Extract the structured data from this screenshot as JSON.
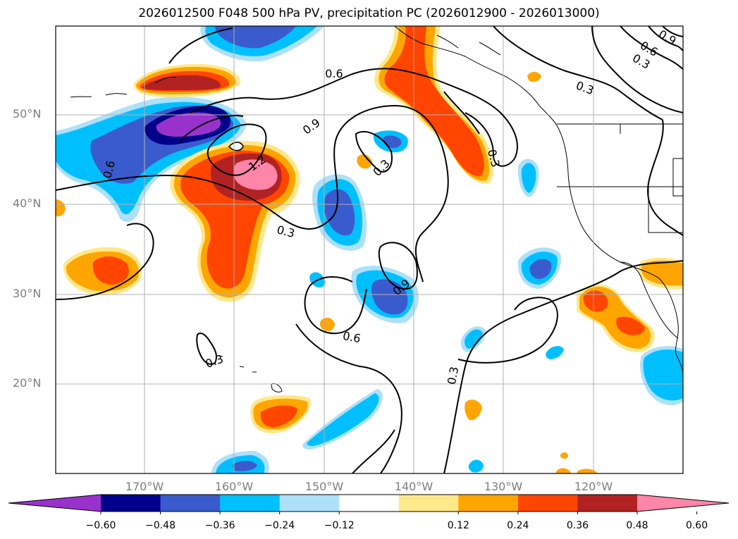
{
  "title": "2026012500 F048 500 hPa PV, precipitation PC (2026012900 - 2026013000)",
  "lat_labels": [
    "50°N",
    "40°N",
    "30°N",
    "20°N"
  ],
  "lon_labels": [
    "170°W",
    "160°W",
    "150°W",
    "140°W",
    "130°W",
    "120°W"
  ],
  "contour_labels": [
    "0.6",
    "0.9",
    "1.2",
    "0.3",
    "0.6",
    "0.3",
    "0.3",
    "0.9",
    "0.6",
    "0.3",
    "0.3",
    "0.3",
    "0.6",
    "0.9",
    "0.3"
  ],
  "colorbar": {
    "ticks": [
      "−0.60",
      "−0.48",
      "−0.36",
      "−0.24",
      "−0.12",
      "0.12",
      "0.24",
      "0.36",
      "0.48",
      "0.60"
    ],
    "colors": [
      "#9932cc",
      "#00008b",
      "#3a5bcd",
      "#00bfff",
      "#ade0f9",
      "#ffffff",
      "#ffe88a",
      "#ffa500",
      "#ff4500",
      "#b22222",
      "#ff85a9"
    ]
  },
  "colors": {
    "land_line": "#000000",
    "grid": "#b0b0b0",
    "axis_text": "#7d7d7d"
  }
}
